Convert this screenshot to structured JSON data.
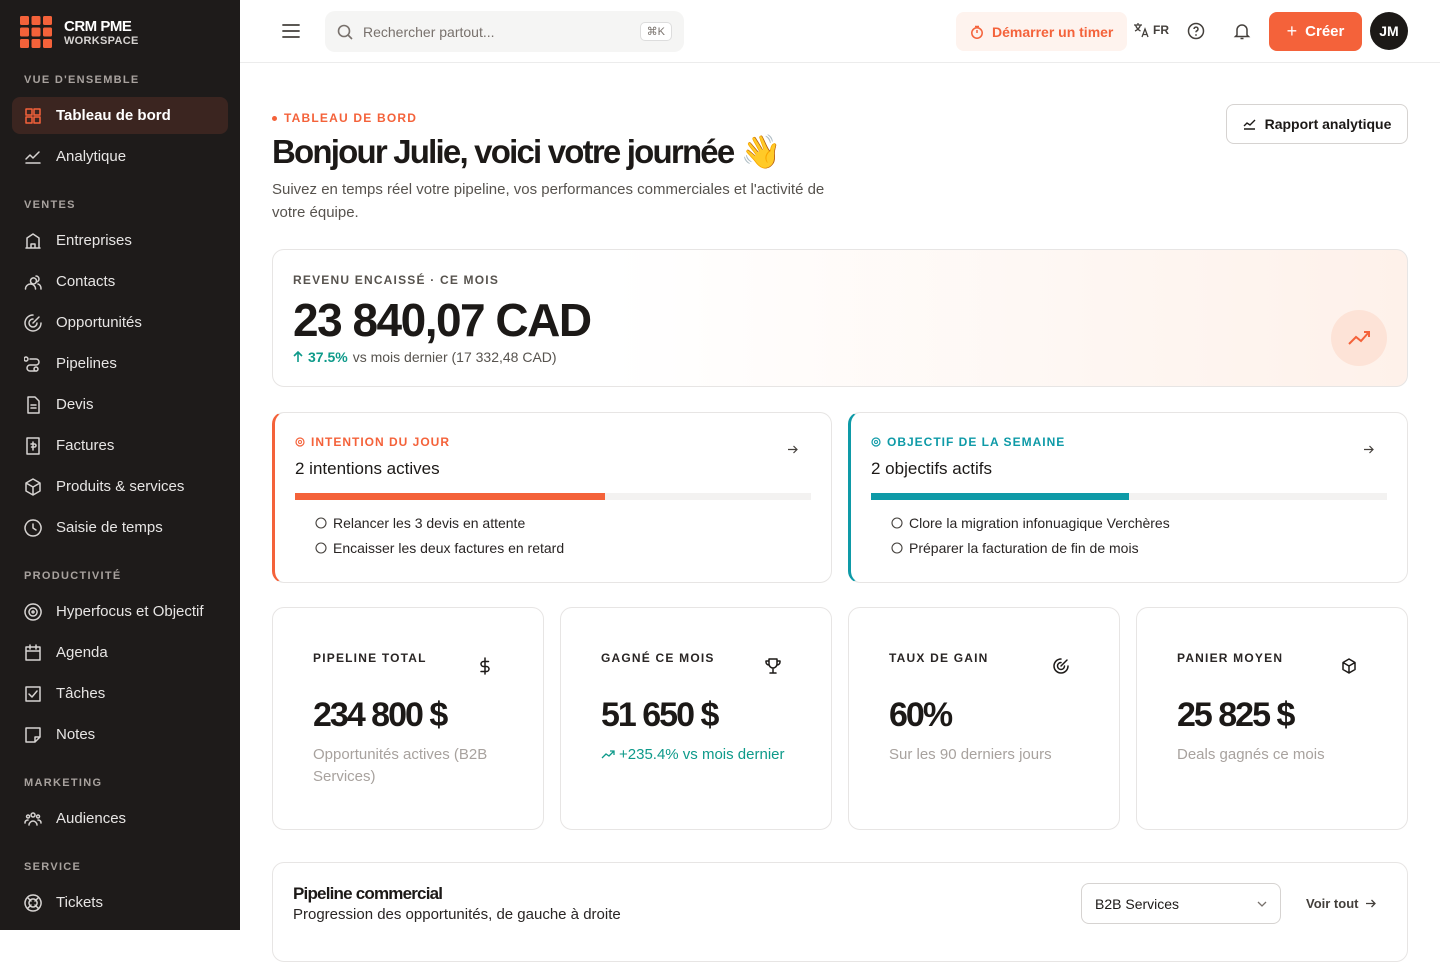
{
  "sidebar": {
    "brand": {
      "name": "CRM PME",
      "sub": "WORKSPACE"
    },
    "sections": [
      {
        "title": "VUE D'ENSEMBLE",
        "items": [
          {
            "label": "Tableau de bord",
            "active": true
          },
          {
            "label": "Analytique"
          }
        ]
      },
      {
        "title": "VENTES",
        "items": [
          {
            "label": "Entreprises"
          },
          {
            "label": "Contacts"
          },
          {
            "label": "Opportunités"
          },
          {
            "label": "Pipelines"
          },
          {
            "label": "Devis"
          },
          {
            "label": "Factures"
          },
          {
            "label": "Produits & services"
          },
          {
            "label": "Saisie de temps"
          }
        ]
      },
      {
        "title": "PRODUCTIVITÉ",
        "items": [
          {
            "label": "Hyperfocus et Objectif"
          },
          {
            "label": "Agenda"
          },
          {
            "label": "Tâches"
          },
          {
            "label": "Notes"
          }
        ]
      },
      {
        "title": "MARKETING",
        "items": [
          {
            "label": "Audiences"
          }
        ]
      },
      {
        "title": "SERVICE",
        "items": [
          {
            "label": "Tickets"
          }
        ]
      }
    ]
  },
  "topbar": {
    "search": "Rechercher partout...",
    "shortcut": "⌘K",
    "timer": "Démarrer un timer",
    "language": "FR",
    "create": "Créer",
    "avatar": "JM"
  },
  "header": {
    "eyebrow": "TABLEAU DE BORD",
    "title": "Bonjour Julie, voici votre journée 👋",
    "subtitle": "Suivez en temps réel votre pipeline, vos performances commerciales et l'activité de votre équipe.",
    "button": "Rapport analytique"
  },
  "revenue": {
    "label": "REVENU ENCAISSÉ · CE MOIS",
    "value": "23 840,07 CAD",
    "change": "37.5%",
    "change_note": "vs mois dernier (17 332,48 CAD)"
  },
  "focus_cards": [
    {
      "label": "INTENTION DU JOUR",
      "heading": "2 intentions actives",
      "progress": 60,
      "color": "#f4623a",
      "items": [
        "Relancer les 3 devis en attente",
        "Encaisser les deux factures en retard"
      ]
    },
    {
      "label": "OBJECTIF DE LA SEMAINE",
      "heading": "2 objectifs actifs",
      "progress": 50,
      "color": "#0e9aa7",
      "items": [
        "Clore la migration infonuagique Verchères",
        "Préparer la facturation de fin de mois"
      ]
    }
  ],
  "kpis": [
    {
      "label": "PIPELINE TOTAL",
      "value": "234 800 $",
      "note": "Opportunités actives (B2B Services)"
    },
    {
      "label": "GAGNÉ CE MOIS",
      "value": "51 650 $",
      "note": "+235.4% vs mois dernier",
      "positive": true
    },
    {
      "label": "TAUX DE GAIN",
      "value": "60%",
      "note": "Sur les 90 derniers jours"
    },
    {
      "label": "PANIER MOYEN",
      "value": "25 825 $",
      "note": "Deals gagnés ce mois"
    }
  ],
  "pipeline": {
    "title": "Pipeline commercial",
    "subtitle": "Progression des opportunités, de gauche à droite",
    "select": "B2B Services",
    "link": "Voir tout"
  }
}
